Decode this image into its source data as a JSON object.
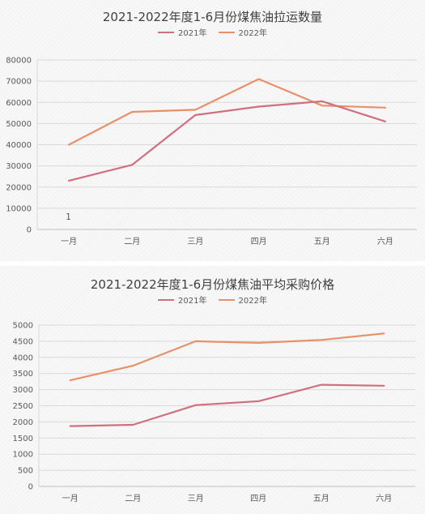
{
  "chart_data": [
    {
      "type": "line",
      "title": "2021-2022年度1-6月份煤焦油拉运数量",
      "categories": [
        "一月",
        "二月",
        "三月",
        "四月",
        "五月",
        "六月"
      ],
      "yticks": [
        "0",
        "10000",
        "20000",
        "30000",
        "40000",
        "50000",
        "60000",
        "70000",
        "80000"
      ],
      "ylim": [
        0,
        80000
      ],
      "grid": true,
      "legend_position": "top",
      "series": [
        {
          "name": "2021年",
          "color": "#d0707f",
          "values": [
            23000,
            30500,
            54000,
            58000,
            60500,
            51000
          ]
        },
        {
          "name": "2022年",
          "color": "#e8906a",
          "values": [
            40000,
            55500,
            56500,
            71000,
            58500,
            57500
          ]
        }
      ],
      "annotation": "1"
    },
    {
      "type": "line",
      "title": "2021-2022年度1-6月份煤焦油平均采购价格",
      "categories": [
        "一月",
        "二月",
        "三月",
        "四月",
        "五月",
        "六月"
      ],
      "yticks": [
        "0",
        "500",
        "1000",
        "1500",
        "2000",
        "2500",
        "3000",
        "3500",
        "4000",
        "4500",
        "5000"
      ],
      "ylim": [
        0,
        5000
      ],
      "grid": true,
      "legend_position": "top",
      "series": [
        {
          "name": "2021年",
          "color": "#d0707f",
          "values": [
            1870,
            1910,
            2520,
            2640,
            3150,
            3120
          ]
        },
        {
          "name": "2022年",
          "color": "#e8906a",
          "values": [
            3290,
            3740,
            4500,
            4450,
            4540,
            4740
          ]
        }
      ]
    }
  ]
}
